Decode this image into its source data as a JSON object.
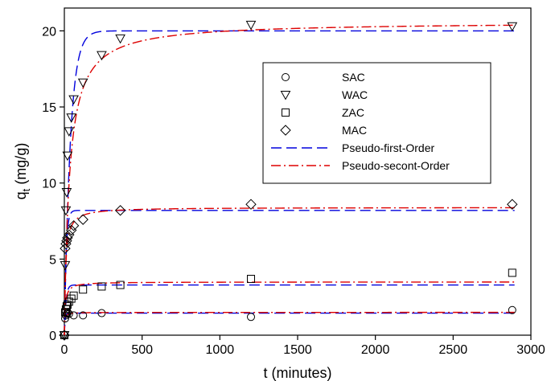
{
  "chart_data": {
    "type": "scatter",
    "xlabel": "t (minutes)",
    "ylabel": "q",
    "ylabel_sub": "t",
    "ylabel_unit": " (mg/g)",
    "xlim": [
      0,
      3000
    ],
    "ylim": [
      0,
      21.5
    ],
    "xticks": [
      0,
      500,
      1000,
      1500,
      2000,
      2500,
      3000
    ],
    "yticks": [
      0,
      5,
      10,
      15,
      20
    ],
    "grid": false,
    "legend_position": "right",
    "series": [
      {
        "name": "SAC",
        "marker": "circle",
        "x": [
          0,
          5,
          10,
          15,
          20,
          30,
          60,
          120,
          240,
          1200,
          2880
        ],
        "y": [
          0,
          1.1,
          1.3,
          1.4,
          1.45,
          1.4,
          1.3,
          1.3,
          1.45,
          1.2,
          1.65
        ]
      },
      {
        "name": "WAC",
        "marker": "triangle-down",
        "x": [
          0,
          5,
          10,
          15,
          20,
          30,
          45,
          60,
          120,
          240,
          360,
          1200,
          2880
        ],
        "y": [
          0,
          4.6,
          8.2,
          9.4,
          11.8,
          13.4,
          14.3,
          15.5,
          16.6,
          18.4,
          19.5,
          20.4,
          20.3
        ]
      },
      {
        "name": "ZAC",
        "marker": "square",
        "x": [
          0,
          5,
          10,
          15,
          20,
          30,
          45,
          60,
          120,
          240,
          360,
          1200,
          2880
        ],
        "y": [
          0,
          1.5,
          1.7,
          1.9,
          2.0,
          2.2,
          2.4,
          2.6,
          3.0,
          3.2,
          3.3,
          3.7,
          4.1
        ]
      },
      {
        "name": "MAC",
        "marker": "diamond",
        "x": [
          0,
          5,
          10,
          15,
          20,
          30,
          45,
          60,
          120,
          360,
          1200,
          2880
        ],
        "y": [
          0,
          5.7,
          6.0,
          6.2,
          6.4,
          6.6,
          6.9,
          7.2,
          7.6,
          8.2,
          8.6,
          8.6
        ]
      }
    ],
    "fits": [
      {
        "name": "Pseudo-first-Order",
        "color": "#0000dd",
        "dash": "13,6",
        "curves": [
          {
            "qe": 1.45,
            "k": 0.2
          },
          {
            "qe": 20.0,
            "k": 0.026
          },
          {
            "qe": 3.3,
            "k": 0.1
          },
          {
            "qe": 8.2,
            "k": 0.09
          }
        ]
      },
      {
        "name": "Pseudo-secont-Order",
        "color": "#dd0000",
        "dash": "12,4,2,4",
        "curves": [
          {
            "qe": 1.5,
            "k": 0.3
          },
          {
            "qe": 20.6,
            "k": 0.0015
          },
          {
            "qe": 3.5,
            "k": 0.05
          },
          {
            "qe": 8.4,
            "k": 0.015
          }
        ]
      }
    ]
  }
}
